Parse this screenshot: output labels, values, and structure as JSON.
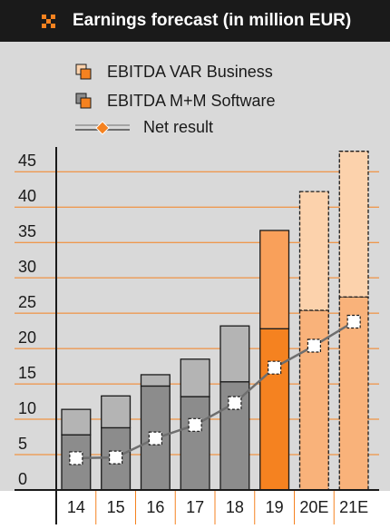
{
  "chart_data": {
    "type": "stacked_bar_line",
    "title": "Earnings forecast (in million EUR)",
    "categories": [
      "14",
      "15",
      "16",
      "17",
      "18",
      "19",
      "20E",
      "21E"
    ],
    "series": [
      {
        "name": "EBITDA VAR Business",
        "values": [
          7.8,
          8.8,
          14.7,
          13.2,
          15.3,
          22.8,
          25.4,
          27.3
        ],
        "colors": [
          "#8c8c8c",
          "#8c8c8c",
          "#8c8c8c",
          "#8c8c8c",
          "#8c8c8c",
          "#f58220",
          "#f9b27a",
          "#f9b27a"
        ]
      },
      {
        "name": "EBITDA M+M Software",
        "values": [
          3.6,
          4.5,
          1.6,
          5.3,
          7.9,
          13.9,
          16.8,
          20.6
        ],
        "colors": [
          "#b4b4b4",
          "#b4b4b4",
          "#b4b4b4",
          "#b4b4b4",
          "#b4b4b4",
          "#f9a05a",
          "#fcd2ac",
          "#fcd2ac"
        ]
      },
      {
        "name": "Net result",
        "type": "line",
        "color": "#6e6e6e",
        "values": [
          4.5,
          4.6,
          7.3,
          9.2,
          12.3,
          17.3,
          20.4,
          23.8
        ]
      }
    ],
    "dashed": [
      false,
      false,
      false,
      false,
      false,
      false,
      true,
      true
    ],
    "ylim": [
      0,
      48.5
    ],
    "yticks": [
      0,
      5,
      10,
      15,
      20,
      25,
      30,
      35,
      40,
      45
    ],
    "grid": true,
    "grid_color": "#f58220"
  }
}
